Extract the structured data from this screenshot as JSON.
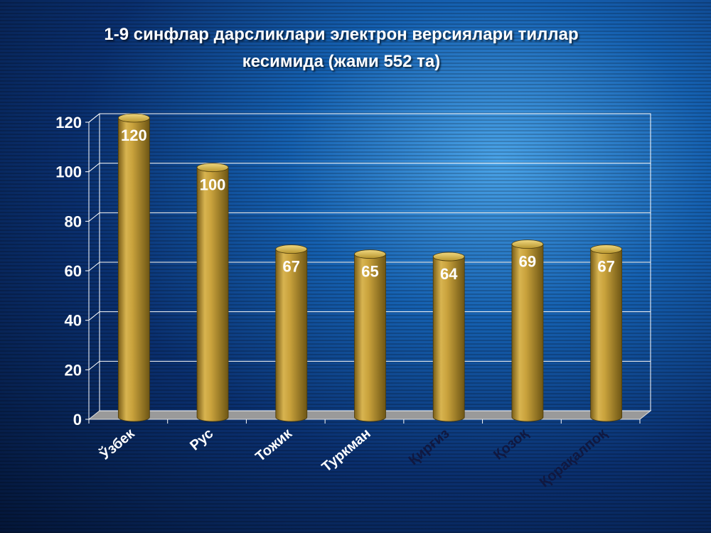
{
  "chart_data": {
    "type": "bar",
    "title_line1": "1-9 синфлар дарсликлари электрон версиялари тиллар",
    "title_line2": "кесимида (жами 552 та)",
    "categories": [
      "Ўзбек",
      "Рус",
      "Тожик",
      "Туркман",
      "Қирғиз",
      "Қозоқ",
      "Қорақалпоқ"
    ],
    "values": [
      120,
      100,
      67,
      65,
      64,
      69,
      67
    ],
    "data_labels": [
      "120",
      "100",
      "67",
      "65",
      "64",
      "69",
      "67"
    ],
    "y_ticks": [
      0,
      20,
      40,
      60,
      80,
      100,
      120
    ],
    "ylim": [
      0,
      120
    ],
    "grid": true,
    "legend": "none",
    "bar_color": "#b8962e",
    "bar_highlight": "#e8cc6a",
    "bar_shadow": "#6e5614"
  }
}
